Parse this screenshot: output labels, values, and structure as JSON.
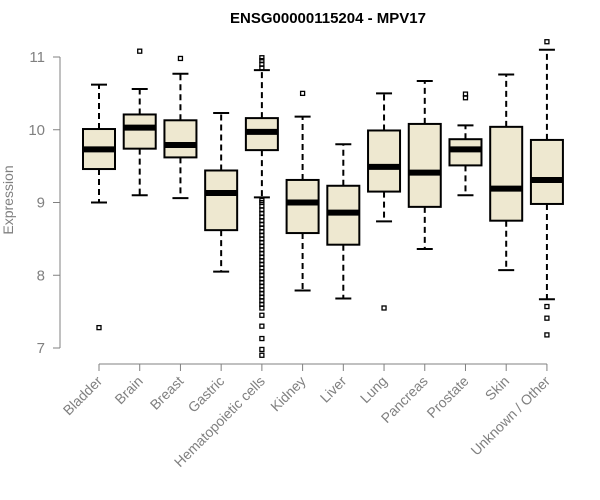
{
  "chart_data": {
    "type": "boxplot",
    "title": "ENSG00000115204 - MPV17",
    "xlabel": "",
    "ylabel": "Expression",
    "ylim": [
      6.85,
      11.2
    ],
    "yticks": [
      7,
      8,
      9,
      10,
      11
    ],
    "box_color": "#EEE8D0",
    "categories": [
      "Bladder",
      "Brain",
      "Breast",
      "Gastric",
      "Hematopoietic cells",
      "Kidney",
      "Liver",
      "Lung",
      "Pancreas",
      "Prostate",
      "Skin",
      "Unknown / Other"
    ],
    "boxes": [
      {
        "whisker_low": 9.0,
        "q1": 9.46,
        "median": 9.73,
        "q3": 10.01,
        "whisker_high": 10.62,
        "outliers": [
          7.28
        ]
      },
      {
        "whisker_low": 9.1,
        "q1": 9.74,
        "median": 10.03,
        "q3": 10.21,
        "whisker_high": 10.56,
        "outliers": [
          11.08
        ]
      },
      {
        "whisker_low": 9.06,
        "q1": 9.62,
        "median": 9.79,
        "q3": 10.13,
        "whisker_high": 10.77,
        "outliers": [
          10.98
        ]
      },
      {
        "whisker_low": 8.05,
        "q1": 8.62,
        "median": 9.13,
        "q3": 9.44,
        "whisker_high": 10.23,
        "outliers": []
      },
      {
        "whisker_low": 9.07,
        "q1": 9.72,
        "median": 9.97,
        "q3": 10.16,
        "whisker_high": 10.82,
        "outliers": [
          6.9,
          6.98,
          7.13,
          7.3,
          7.45,
          7.55,
          7.6,
          7.65,
          7.7,
          7.75,
          7.8,
          7.85,
          7.9,
          7.95,
          8.0,
          8.05,
          8.1,
          8.15,
          8.2,
          8.25,
          8.3,
          8.35,
          8.4,
          8.45,
          8.5,
          8.55,
          8.6,
          8.65,
          8.7,
          8.75,
          8.8,
          8.85,
          8.9,
          8.95,
          9.0,
          9.03,
          10.85,
          10.9,
          10.95,
          10.99
        ]
      },
      {
        "whisker_low": 7.79,
        "q1": 8.58,
        "median": 9.0,
        "q3": 9.31,
        "whisker_high": 10.18,
        "outliers": [
          10.5
        ]
      },
      {
        "whisker_low": 7.68,
        "q1": 8.42,
        "median": 8.86,
        "q3": 9.23,
        "whisker_high": 9.8,
        "outliers": []
      },
      {
        "whisker_low": 8.74,
        "q1": 9.15,
        "median": 9.49,
        "q3": 9.99,
        "whisker_high": 10.5,
        "outliers": [
          7.55
        ]
      },
      {
        "whisker_low": 8.36,
        "q1": 8.94,
        "median": 9.41,
        "q3": 10.08,
        "whisker_high": 10.67,
        "outliers": []
      },
      {
        "whisker_low": 9.1,
        "q1": 9.51,
        "median": 9.73,
        "q3": 9.87,
        "whisker_high": 10.06,
        "outliers": [
          10.44,
          10.49
        ]
      },
      {
        "whisker_low": 8.07,
        "q1": 8.75,
        "median": 9.19,
        "q3": 10.04,
        "whisker_high": 10.76,
        "outliers": []
      },
      {
        "whisker_low": 7.67,
        "q1": 8.98,
        "median": 9.31,
        "q3": 9.86,
        "whisker_high": 11.1,
        "outliers": [
          7.18,
          7.41,
          7.57,
          11.21
        ]
      }
    ]
  }
}
